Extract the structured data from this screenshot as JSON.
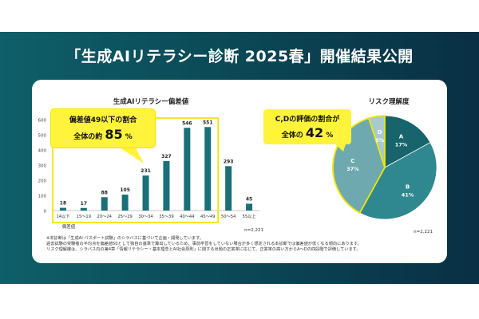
{
  "header": {
    "title": "「生成AIリテラシー診断 2025春」開催結果公開"
  },
  "left_callout": {
    "line1": "偏差値49以下の割合",
    "line2_prefix": "全体の約",
    "line2_value": "85",
    "line2_suffix": "%"
  },
  "right_callout": {
    "line1": "C,Dの評価の割合が",
    "line2_prefix": "全体の",
    "line2_value": "42",
    "line2_suffix": "%"
  },
  "notes": [
    "※本診断は「生成AI パスポート試験」のシラバスに基づいて企画・開発しています。",
    "過去試験の受験者の平均点を偏差値50として独自の基準で算出しているため、事前学習をしていない場合が多く想定される本診断では偏差値が低くなる傾向にあります。",
    "リスク理解度は、シラバス内の第4章「情報リテラシー・基本理念とAI社会原則」に関する出題の正答率に応じて、正答率の高い方からA〜Dの四段階で評価しています。"
  ],
  "chart_data": [
    {
      "type": "bar",
      "title": "生成AIリテラシー偏差値",
      "xlabel": "偏差値",
      "ylabel": "",
      "categories": [
        "14以下",
        "15〜19",
        "20〜24",
        "25〜29",
        "30〜34",
        "35〜39",
        "40〜44",
        "45〜49",
        "50〜54",
        "55以上"
      ],
      "values": [
        18,
        17,
        88,
        105,
        231,
        327,
        546,
        551,
        293,
        45
      ],
      "yticks": [
        0,
        100,
        200,
        300,
        400,
        500,
        600
      ],
      "ylim": [
        0,
        600
      ],
      "grid": false,
      "color": "#1a6f78",
      "footnote": "n=2,221"
    },
    {
      "type": "pie",
      "title": "リスク理解度",
      "labels": [
        "A",
        "B",
        "C",
        "D"
      ],
      "values": [
        17,
        41,
        37,
        5
      ],
      "percent_labels": [
        "17%",
        "41%",
        "37%",
        "5%"
      ],
      "colors": [
        "#17646d",
        "#2f8890",
        "#6ea9b0",
        "#a8c9ce"
      ],
      "footnote": "n=2,221"
    }
  ]
}
